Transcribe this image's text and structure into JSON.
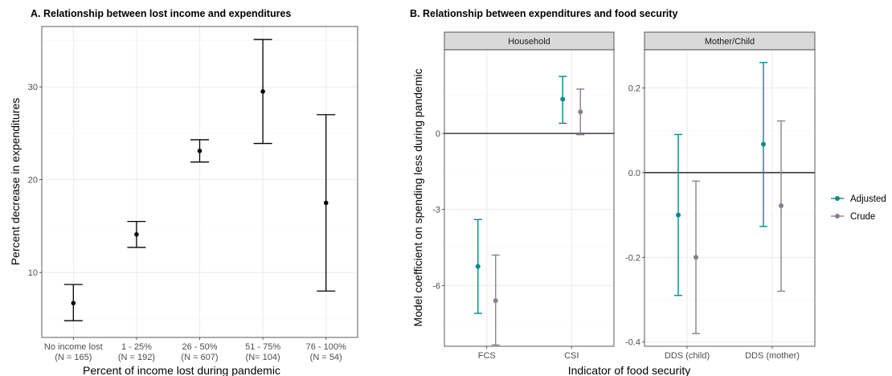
{
  "chart_data": [
    {
      "panel_title": "A. Relationship between lost income and expenditures",
      "type": "errorbar",
      "xlabel": "Percent of income lost during pandemic",
      "ylabel": "Percent decrease in expenditures",
      "categories": [
        {
          "label": "No income lost",
          "n": "(N = 165)"
        },
        {
          "label": "1 - 25%",
          "n": "(N = 192)"
        },
        {
          "label": "26 - 50%",
          "n": "(N = 607)"
        },
        {
          "label": "51 - 75%",
          "n": "(N= 104)"
        },
        {
          "label": "76 - 100%",
          "n": "(N = 54)"
        }
      ],
      "points": [
        {
          "estimate": 6.7,
          "lower": 4.8,
          "upper": 8.7
        },
        {
          "estimate": 14.1,
          "lower": 12.7,
          "upper": 15.5
        },
        {
          "estimate": 23.1,
          "lower": 21.9,
          "upper": 24.3
        },
        {
          "estimate": 29.5,
          "lower": 23.9,
          "upper": 35.1
        },
        {
          "estimate": 17.5,
          "lower": 8.0,
          "upper": 27.0
        }
      ],
      "yticks": [
        10,
        20,
        30
      ],
      "ylim": [
        3.0,
        36.5
      ],
      "grid": true
    },
    {
      "panel_title": "B. Relationship between expenditures and food security",
      "type": "errorbar",
      "xlabel": "Indicator of food security",
      "ylabel": "Model coefficient on spending less during pandemic",
      "legend": {
        "position": "right",
        "entries": [
          "Adjusted",
          "Crude"
        ]
      },
      "colors": {
        "Adjusted": "#008b8b",
        "Crude": "#8a7f8c"
      },
      "facets": [
        {
          "strip": "Household",
          "categories": [
            "FCS",
            "CSI"
          ],
          "yticks": [
            0,
            -3,
            -6
          ],
          "ylim": [
            -8.4,
            3.3
          ],
          "series": [
            {
              "name": "Adjusted",
              "points": [
                {
                  "estimate": -5.25,
                  "lower": -7.1,
                  "upper": -3.4
                },
                {
                  "estimate": 1.35,
                  "lower": 0.4,
                  "upper": 2.25
                }
              ]
            },
            {
              "name": "Crude",
              "points": [
                {
                  "estimate": -6.6,
                  "lower": -8.35,
                  "upper": -4.8
                },
                {
                  "estimate": 0.85,
                  "lower": -0.05,
                  "upper": 1.75
                }
              ]
            }
          ]
        },
        {
          "strip": "Mother/Child",
          "categories": [
            "DDS (child)",
            "DDS (mother)"
          ],
          "yticks": [
            0.2,
            0.0,
            -0.2,
            -0.4
          ],
          "ylim": [
            -0.41,
            0.29
          ],
          "series": [
            {
              "name": "Adjusted",
              "points": [
                {
                  "estimate": -0.1,
                  "lower": -0.29,
                  "upper": 0.09
                },
                {
                  "estimate": 0.067,
                  "lower": -0.127,
                  "upper": 0.26
                }
              ]
            },
            {
              "name": "Crude",
              "points": [
                {
                  "estimate": -0.2,
                  "lower": -0.38,
                  "upper": -0.02
                },
                {
                  "estimate": -0.078,
                  "lower": -0.28,
                  "upper": 0.122
                }
              ]
            }
          ]
        }
      ]
    }
  ]
}
